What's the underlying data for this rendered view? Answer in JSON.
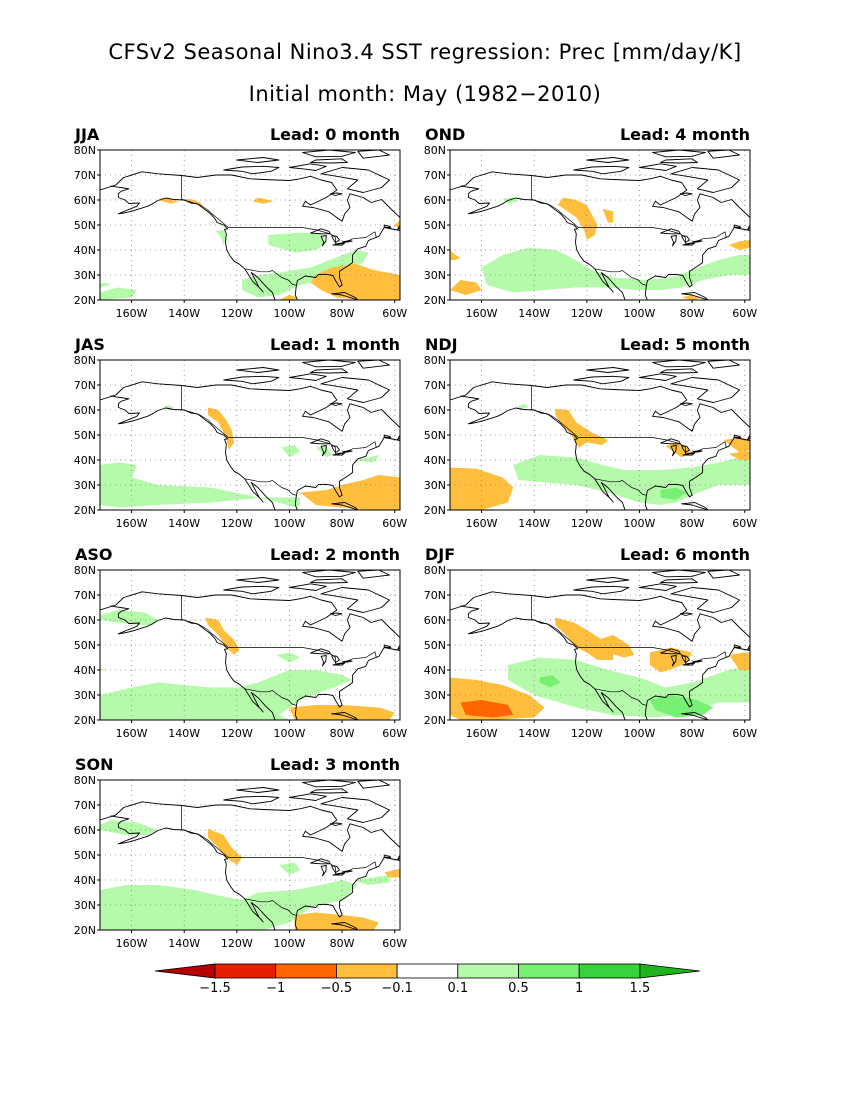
{
  "title": "CFSv2 Seasonal Nino3.4 SST regression: Prec [mm/day/K]",
  "subtitle": "Initial month: May (1982−2010)",
  "lat_ticks": [
    "20N",
    "30N",
    "40N",
    "50N",
    "60N",
    "70N",
    "80N"
  ],
  "lon_ticks": [
    "160W",
    "140W",
    "120W",
    "100W",
    "80W",
    "60W"
  ],
  "panels": [
    {
      "season": "JJA",
      "lead": "Lead: 0 month"
    },
    {
      "season": "OND",
      "lead": "Lead: 4 month"
    },
    {
      "season": "JAS",
      "lead": "Lead: 1 month"
    },
    {
      "season": "NDJ",
      "lead": "Lead: 5 month"
    },
    {
      "season": "ASO",
      "lead": "Lead: 2 month"
    },
    {
      "season": "DJF",
      "lead": "Lead: 6 month"
    },
    {
      "season": "SON",
      "lead": "Lead: 3 month"
    }
  ],
  "colorbar": {
    "labels": [
      "−1.5",
      "−1",
      "−0.5",
      "−0.1",
      "0.1",
      "0.5",
      "1",
      "1.5"
    ],
    "colors": [
      "#b40000",
      "#e61e00",
      "#ff6400",
      "#ffbe3c",
      "#ffffff",
      "#b4faaa",
      "#78f073",
      "#37d23c",
      "#1eb41e"
    ]
  },
  "colors": {
    "orange": "#ffbe3c",
    "green": "#b4faaa",
    "mid_green": "#78f073",
    "deep_orange": "#ff6400",
    "red": "#e61e00"
  }
}
